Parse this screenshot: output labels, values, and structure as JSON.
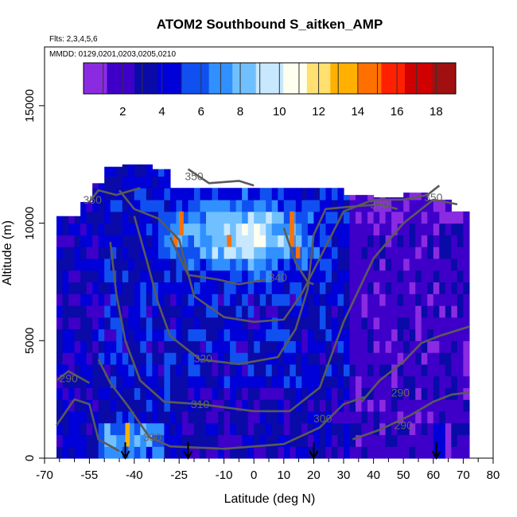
{
  "chart_data": {
    "type": "heatmap",
    "title": "ATOM2 Southbound S_aitken_AMP",
    "flights_note": "Flts: 2,3,4,5,6",
    "dates_note": "MMDD: 0129,0201,0203,0205,0210",
    "xlabel": "Latitude (deg N)",
    "ylabel": "Altitude (m)",
    "xlim": [
      -70,
      80
    ],
    "ylim": [
      0,
      17500
    ],
    "x_ticks": [
      -70,
      -55,
      -40,
      -25,
      -10,
      0,
      10,
      20,
      30,
      40,
      50,
      60,
      70,
      80
    ],
    "y_ticks": [
      0,
      5000,
      10000,
      15000
    ],
    "colorbar": {
      "range": [
        0,
        19
      ],
      "ticks": [
        2,
        4,
        6,
        8,
        10,
        12,
        14,
        16,
        18
      ],
      "colors": [
        "#8a2be2",
        "#3e00c8",
        "#0a0aa8",
        "#0000d8",
        "#1050f0",
        "#3090ff",
        "#70c0ff",
        "#c8e8ff",
        "#fffff0",
        "#ffe070",
        "#ffb000",
        "#ff7000",
        "#ff2000",
        "#d00000",
        "#a01010"
      ]
    },
    "data_extent_lat": [
      -66,
      72
    ],
    "contours": [
      {
        "label": "290",
        "points": [
          [
            -66,
            1400
          ],
          [
            -60,
            2500
          ],
          [
            -55,
            2300
          ],
          [
            -52,
            800
          ],
          [
            -45,
            300
          ]
        ]
      },
      {
        "label": "290",
        "points": [
          [
            -66,
            3300
          ],
          [
            -62,
            3700
          ],
          [
            -55,
            3200
          ]
        ]
      },
      {
        "label": "290",
        "points": [
          [
            36,
            2400
          ],
          [
            42,
            3300
          ],
          [
            50,
            4100
          ],
          [
            56,
            4900
          ],
          [
            62,
            5200
          ],
          [
            72,
            5600
          ]
        ]
      },
      {
        "label": "290",
        "points": [
          [
            33,
            800
          ],
          [
            42,
            1200
          ],
          [
            52,
            1800
          ],
          [
            60,
            2400
          ],
          [
            66,
            2700
          ],
          [
            72,
            2800
          ]
        ]
      },
      {
        "label": "300",
        "points": [
          [
            -52,
            4200
          ],
          [
            -48,
            3200
          ],
          [
            -42,
            2200
          ],
          [
            -35,
            900
          ],
          [
            -28,
            500
          ],
          [
            -10,
            400
          ],
          [
            10,
            600
          ],
          [
            22,
            1300
          ],
          [
            30,
            2300
          ],
          [
            37,
            2600
          ]
        ]
      },
      {
        "label": "310",
        "points": [
          [
            -48,
            9200
          ],
          [
            -46,
            7000
          ],
          [
            -43,
            5000
          ],
          [
            -38,
            3300
          ],
          [
            -30,
            2400
          ],
          [
            -18,
            2300
          ],
          [
            0,
            2000
          ],
          [
            12,
            2000
          ],
          [
            22,
            3000
          ],
          [
            30,
            5800
          ],
          [
            40,
            8500
          ],
          [
            50,
            10000
          ],
          [
            60,
            11000
          ],
          [
            68,
            10800
          ]
        ]
      },
      {
        "label": "320",
        "points": [
          [
            -40,
            10300
          ],
          [
            -36,
            8500
          ],
          [
            -32,
            6600
          ],
          [
            -28,
            5200
          ],
          [
            -18,
            4200
          ],
          [
            -5,
            4000
          ],
          [
            8,
            4300
          ],
          [
            14,
            5500
          ],
          [
            18,
            7200
          ],
          [
            20,
            9500
          ],
          [
            24,
            10600
          ],
          [
            32,
            10700
          ],
          [
            42,
            10800
          ],
          [
            48,
            10600
          ]
        ]
      },
      {
        "label": "330",
        "points": [
          [
            -45,
            11400
          ],
          [
            -40,
            10600
          ],
          [
            -32,
            10200
          ],
          [
            -25,
            9300
          ],
          [
            -20,
            6900
          ],
          [
            -10,
            6000
          ],
          [
            0,
            5800
          ],
          [
            10,
            5900
          ],
          [
            16,
            7000
          ],
          [
            20,
            8000
          ],
          [
            24,
            9000
          ],
          [
            30,
            10500
          ],
          [
            40,
            11000
          ],
          [
            50,
            11000
          ],
          [
            58,
            11200
          ],
          [
            62,
            11600
          ]
        ]
      },
      {
        "label": "340",
        "points": [
          [
            -28,
            9400
          ],
          [
            -22,
            7800
          ],
          [
            -12,
            7600
          ],
          [
            -5,
            7400
          ],
          [
            4,
            7600
          ]
        ]
      },
      {
        "label": "340",
        "points": [
          [
            10,
            9800
          ],
          [
            14,
            8300
          ],
          [
            18,
            7500
          ],
          [
            20,
            7400
          ]
        ]
      },
      {
        "label": "350",
        "points": [
          [
            -55,
            10900
          ],
          [
            -52,
            11400
          ],
          [
            -46,
            11200
          ],
          [
            -38,
            11500
          ]
        ]
      },
      {
        "label": "350",
        "points": [
          [
            -22,
            12300
          ],
          [
            -15,
            11700
          ],
          [
            -5,
            11800
          ],
          [
            0,
            11600
          ]
        ]
      }
    ],
    "contour_labels": [
      {
        "label": "350",
        "x": -54,
        "y": 11000
      },
      {
        "label": "350",
        "x": -20,
        "y": 12000
      },
      {
        "label": "330",
        "x": 42,
        "y": 10800
      },
      {
        "label": "350",
        "x": 60,
        "y": 11100
      },
      {
        "label": "340",
        "x": 8,
        "y": 7700
      },
      {
        "label": "320",
        "x": -17,
        "y": 4250
      },
      {
        "label": "310",
        "x": -18,
        "y": 2300
      },
      {
        "label": "300",
        "x": -34,
        "y": 900
      },
      {
        "label": "290",
        "x": -62,
        "y": 3400
      },
      {
        "label": "300",
        "x": 23,
        "y": 1700
      },
      {
        "label": "290",
        "x": 49,
        "y": 2800
      },
      {
        "label": "290",
        "x": 50,
        "y": 1400
      }
    ],
    "arrows_lat": [
      -43,
      -22,
      20,
      61
    ]
  }
}
